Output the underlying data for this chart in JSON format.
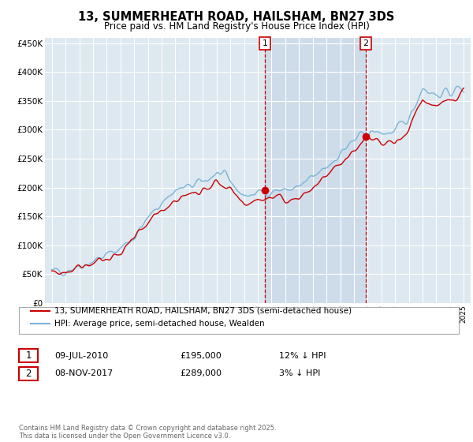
{
  "title": "13, SUMMERHEATH ROAD, HAILSHAM, BN27 3DS",
  "subtitle": "Price paid vs. HM Land Registry's House Price Index (HPI)",
  "ylabel_ticks": [
    "£0",
    "£50K",
    "£100K",
    "£150K",
    "£200K",
    "£250K",
    "£300K",
    "£350K",
    "£400K",
    "£450K"
  ],
  "ytick_values": [
    0,
    50000,
    100000,
    150000,
    200000,
    250000,
    300000,
    350000,
    400000,
    450000
  ],
  "ylim": [
    0,
    460000
  ],
  "hpi_color": "#7ab4d8",
  "price_color": "#cc0000",
  "purchase1_date": 2010.53,
  "purchase1_price": 195000,
  "purchase2_date": 2017.86,
  "purchase2_price": 289000,
  "vline_color": "#cc0000",
  "bg_color": "#dde8f0",
  "shade_color": "#c8d8e8",
  "grid_color": "#ffffff",
  "legend1_text": "13, SUMMERHEATH ROAD, HAILSHAM, BN27 3DS (semi-detached house)",
  "legend2_text": "HPI: Average price, semi-detached house, Wealden",
  "table_row1": [
    "1",
    "09-JUL-2010",
    "£195,000",
    "12% ↓ HPI"
  ],
  "table_row2": [
    "2",
    "08-NOV-2017",
    "£289,000",
    "3% ↓ HPI"
  ],
  "footer": "Contains HM Land Registry data © Crown copyright and database right 2025.\nThis data is licensed under the Open Government Licence v3.0.",
  "xlim_start": 1994.5,
  "xlim_end": 2025.5
}
